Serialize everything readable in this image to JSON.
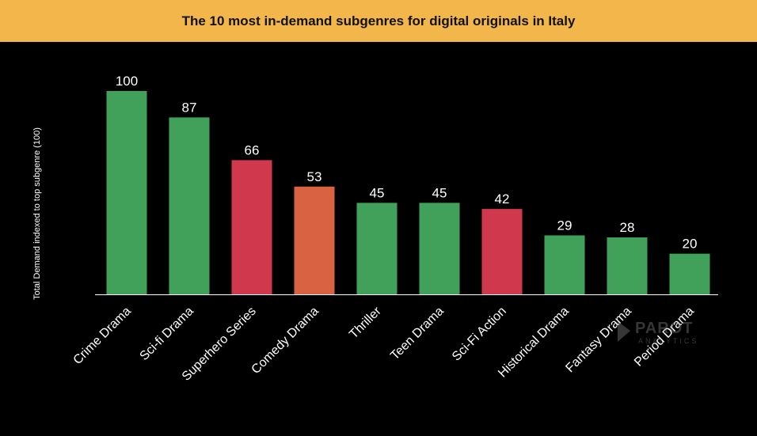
{
  "colors": {
    "title_bg": "#F2B64A",
    "background": "#000000",
    "green": "#41A05A",
    "red": "#D0384E",
    "orange": "#D96242",
    "axis": "#FFFFFF",
    "text": "#FFFFFF"
  },
  "watermark": {
    "name": "PAROT",
    "sub": "ANALYTICS",
    "icon": "parrot-logo-icon"
  },
  "chart_data": {
    "type": "bar",
    "title": "The 10 most in-demand subgenres for digital originals in Italy",
    "xlabel": "",
    "ylabel": "Total Demand indexed to top subgenre (100)",
    "ylim": [
      0,
      100
    ],
    "grid": false,
    "legend": "none",
    "categories": [
      "Crime Drama",
      "Sci-fi Drama",
      "Superhero Series",
      "Comedy Drama",
      "Thriller",
      "Teen Drama",
      "Sci-Fi Action",
      "Historical Drama",
      "Fantasy Drama",
      "Period Drama"
    ],
    "values": [
      100,
      87,
      66,
      53,
      45,
      45,
      42,
      29,
      28,
      20
    ],
    "value_labels": [
      "100",
      "87",
      "66",
      "53",
      "45",
      "45",
      "42",
      "29",
      "28",
      "20"
    ],
    "bar_colors": [
      "#41A05A",
      "#41A05A",
      "#D0384E",
      "#D96242",
      "#41A05A",
      "#41A05A",
      "#D0384E",
      "#41A05A",
      "#41A05A",
      "#41A05A"
    ]
  }
}
